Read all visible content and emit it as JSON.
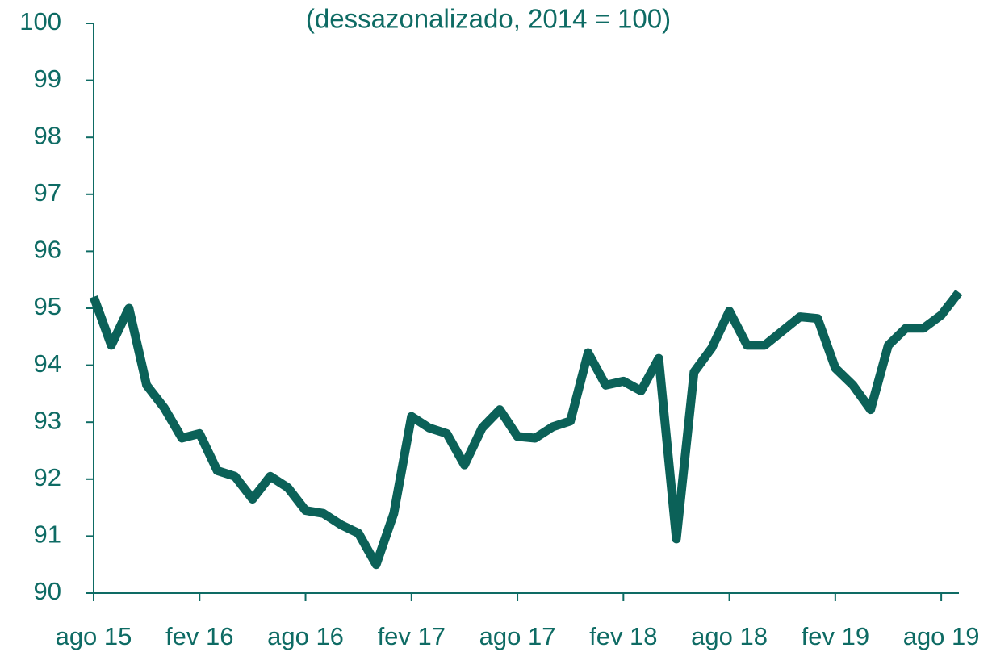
{
  "chart_data": {
    "type": "line",
    "subtitle": "(dessazonalizado, 2014 = 100)",
    "categories": [
      "ago 15",
      null,
      null,
      null,
      null,
      null,
      "fev 16",
      null,
      null,
      null,
      null,
      null,
      "ago 16",
      null,
      null,
      null,
      null,
      null,
      "fev 17",
      null,
      null,
      null,
      null,
      null,
      "ago 17",
      null,
      null,
      null,
      null,
      null,
      "fev 18",
      null,
      null,
      null,
      null,
      null,
      "ago 18",
      null,
      null,
      null,
      null,
      null,
      "fev 19",
      null,
      null,
      null,
      null,
      null,
      "ago 19",
      null
    ],
    "values": [
      95.2,
      94.35,
      95.0,
      93.65,
      93.25,
      92.72,
      92.8,
      92.15,
      92.05,
      91.65,
      92.05,
      91.85,
      91.45,
      91.4,
      91.2,
      91.05,
      90.5,
      91.4,
      93.1,
      92.9,
      92.8,
      92.25,
      92.9,
      93.22,
      92.75,
      92.72,
      92.92,
      93.02,
      94.22,
      93.65,
      93.72,
      93.55,
      94.12,
      90.95,
      93.88,
      94.3,
      94.95,
      94.35,
      94.35,
      94.6,
      94.85,
      94.82,
      93.95,
      93.65,
      93.22,
      94.35,
      94.65,
      94.65,
      94.88,
      95.28
    ],
    "color": "#0b6158",
    "ylim": [
      90,
      100
    ],
    "yticks": [
      90,
      91,
      92,
      93,
      94,
      95,
      96,
      97,
      98,
      99,
      100
    ],
    "grid": false
  }
}
